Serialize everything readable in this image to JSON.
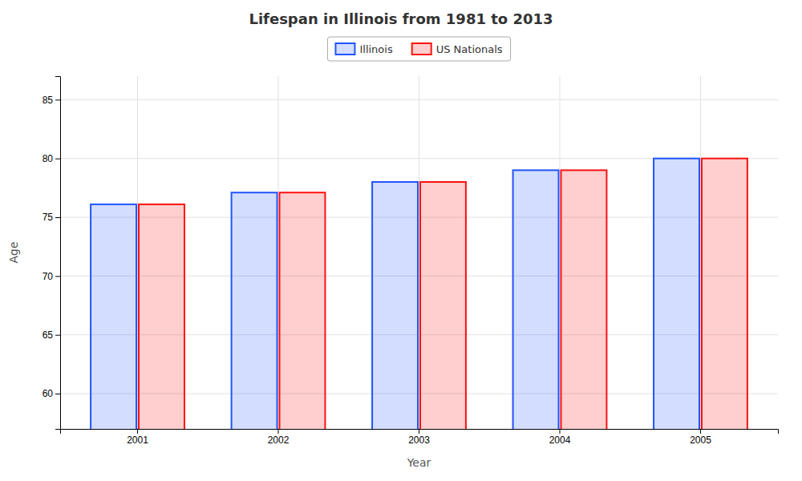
{
  "chart_data": {
    "type": "bar",
    "title": "Lifespan in Illinois from 1981 to 2013",
    "xlabel": "Year",
    "ylabel": "Age",
    "categories": [
      "2001",
      "2002",
      "2003",
      "2004",
      "2005"
    ],
    "series": [
      {
        "name": "Illinois",
        "color": "#2255ff",
        "values": [
          76.1,
          77.1,
          78.0,
          79.0,
          80.0
        ]
      },
      {
        "name": "US Nationals",
        "color": "#ff1111",
        "values": [
          76.1,
          77.1,
          78.0,
          79.0,
          80.0
        ]
      }
    ],
    "ylim": [
      57,
      87
    ],
    "yticks": [
      60,
      65,
      70,
      75,
      80,
      85
    ],
    "grid": true,
    "legend": "top"
  }
}
